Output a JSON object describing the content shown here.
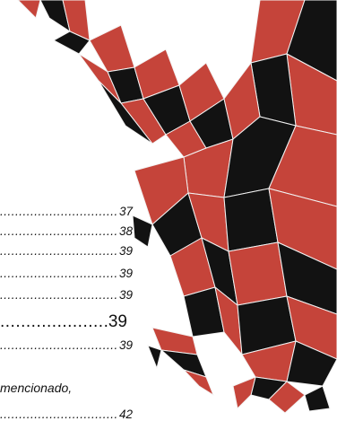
{
  "toc": {
    "entries": [
      {
        "page": "37"
      },
      {
        "page": "38"
      },
      {
        "page": "39"
      },
      {
        "page": "39"
      },
      {
        "page": "39"
      },
      {
        "page": "39"
      },
      {
        "page": "39"
      }
    ],
    "wrap_text": "mencionado,",
    "last_page": "42"
  },
  "colors": {
    "red": "#c5443a",
    "dark": "#121212",
    "line": "#f3f3f3"
  }
}
